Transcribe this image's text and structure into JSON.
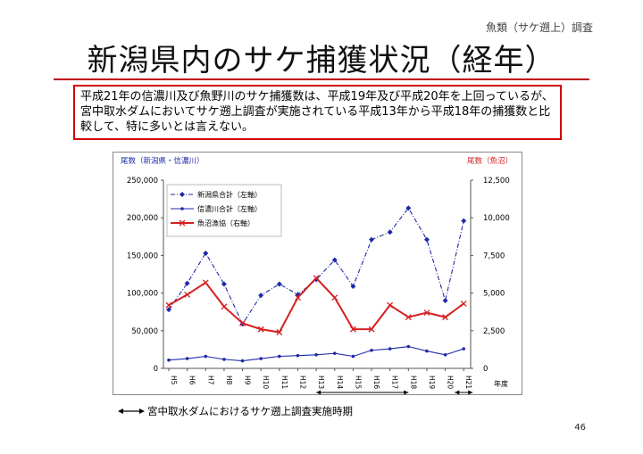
{
  "header": {
    "category": "魚類（サケ遡上）調査",
    "title": "新潟県内のサケ捕獲状況（経年）"
  },
  "summary": "平成21年の信濃川及び魚野川のサケ捕獲数は、平成19年及び平成20年を上回っているが、宮中取水ダムにおいてサケ遡上調査が実施されている平成13年から平成18年の捕獲数と比較して、特に多いとは言えない。",
  "footnote": "宮中取水ダムにおけるサケ遡上調査実施時期",
  "page_number": "46",
  "colors": {
    "niigata": "#1e2aa8",
    "shinano": "#1e2aa8",
    "uonuma": "#d42020",
    "accent_red": "#d00000"
  },
  "chart_data": {
    "type": "line",
    "left_axis_title": "尾数（新潟県・信濃川）",
    "right_axis_title": "尾数（魚沼）",
    "xlabel": "年度",
    "categories": [
      "H5",
      "H6",
      "H7",
      "H8",
      "H9",
      "H10",
      "H11",
      "H12",
      "H13",
      "H14",
      "H15",
      "H16",
      "H17",
      "H18",
      "H19",
      "H20",
      "H21"
    ],
    "left_ticks": [
      "250,000",
      "200,000",
      "150,000",
      "100,000",
      "50,000",
      "0"
    ],
    "right_ticks": [
      "12,500",
      "10,000",
      "7,500",
      "5,000",
      "2,500",
      "0"
    ],
    "ylim_left": [
      0,
      250000
    ],
    "ylim_right": [
      0,
      12500
    ],
    "grid": false,
    "legend_position": "top-left",
    "series": [
      {
        "name": "新潟県合計（左軸）",
        "axis": "left",
        "style": "dash-dot-diamond",
        "values": [
          78000,
          113000,
          153000,
          112000,
          59000,
          97000,
          112000,
          98000,
          118000,
          144000,
          109000,
          171000,
          181000,
          213000,
          171000,
          90000,
          196000
        ]
      },
      {
        "name": "信濃川合計（左軸）",
        "axis": "left",
        "style": "solid-dot",
        "values": [
          11000,
          13000,
          16000,
          12000,
          10000,
          13000,
          16000,
          17000,
          18000,
          20000,
          16000,
          24000,
          26000,
          29000,
          23000,
          18000,
          26000
        ]
      },
      {
        "name": "魚沼漁協（右軸）",
        "axis": "right",
        "style": "solid-x",
        "values": [
          4200,
          4900,
          5700,
          4100,
          3000,
          2600,
          2400,
          4700,
          6000,
          4700,
          2600,
          2600,
          4200,
          3400,
          3700,
          3400,
          4300
        ]
      }
    ],
    "survey_periods": [
      [
        "H13",
        "H18"
      ],
      [
        "H21",
        "H21"
      ]
    ]
  }
}
